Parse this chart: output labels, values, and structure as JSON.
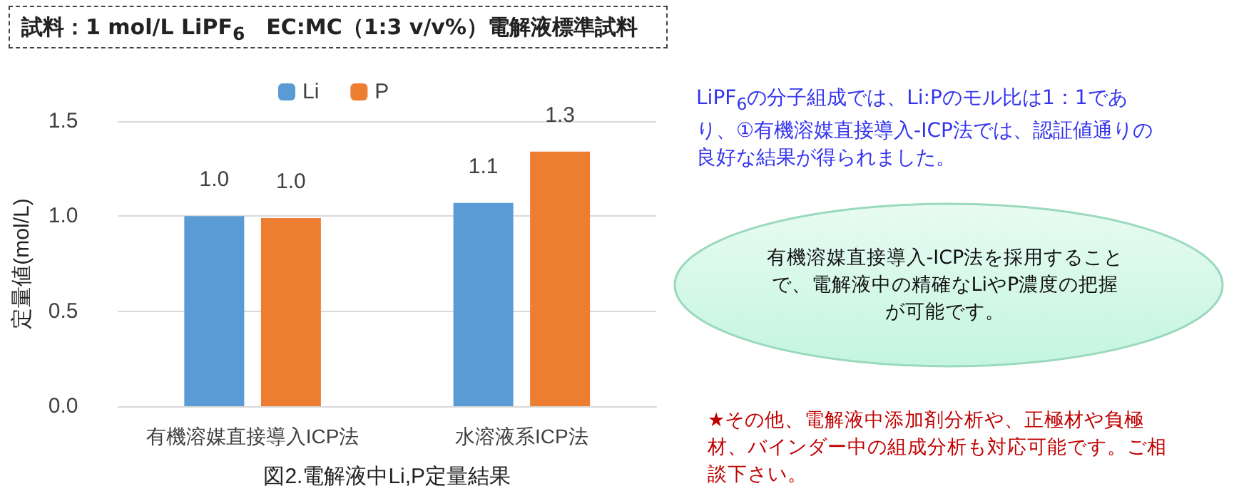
{
  "chart_data": {
    "type": "bar",
    "title": "試料：1 mol/L LiPF$_{6}$　EC:MC（1:3 v/v%）電解液標準試料",
    "xlabel": "図2.電解液中Li,P定量結果",
    "ylabel": "定量値(mol/L)",
    "categories": [
      "有機溶媒直接導入ICP法",
      "水溶液系ICP法"
    ],
    "series": [
      {
        "name": "Li",
        "color": "#5b9bd5",
        "values": [
          1.0,
          1.07
        ],
        "value_labels": [
          "1.0",
          "1.1"
        ]
      },
      {
        "name": "P",
        "color": "#ed7d31",
        "values": [
          0.99,
          1.34
        ],
        "value_labels": [
          "1.0",
          "1.3"
        ]
      }
    ],
    "ylim": [
      0,
      1.5
    ],
    "yticks": [
      {
        "value": 0,
        "label": "0.0"
      },
      {
        "value": 0.5,
        "label": "0.5"
      },
      {
        "value": 1,
        "label": "1.0"
      },
      {
        "value": 1.5,
        "label": "1.5"
      }
    ],
    "grid": "y",
    "legend": "top",
    "annotations": [
      "LiPF$_{6}$の分子組成では、Li:Pのモル比は1：1であり、①有機溶媒直接導入-ICP法では、認証値通りの良好な結果が得られました。",
      "有機溶媒直接導入-ICP法を採用することで、電解液中の精確なLiやP濃度の把握が可能です。",
      "★その他、電解液中添加剤分析や、正極材や負極材、バインダー中の組成分析も対応可能です。ご相談下さい。"
    ]
  }
}
